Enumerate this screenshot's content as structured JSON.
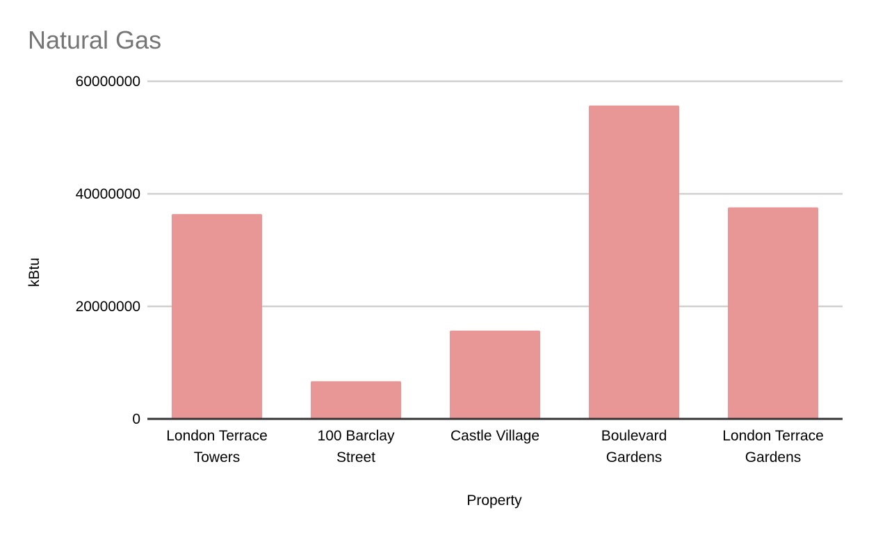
{
  "chart_data": {
    "type": "bar",
    "title": "Natural Gas",
    "xlabel": "Property",
    "ylabel": "kBtu",
    "categories": [
      [
        "London Terrace",
        "Towers"
      ],
      [
        "100 Barclay",
        "Street"
      ],
      [
        "Castle Village"
      ],
      [
        "Boulevard",
        "Gardens"
      ],
      [
        "London Terrace",
        "Gardens"
      ]
    ],
    "values": [
      36400000,
      6700000,
      15700000,
      55700000,
      37600000
    ],
    "ylim": [
      0,
      60000000
    ],
    "yticks": [
      0,
      20000000,
      40000000,
      60000000
    ],
    "ytick_labels": [
      "0",
      "20000000",
      "40000000",
      "60000000"
    ],
    "grid": true,
    "legend": "none",
    "bar_color": "#e99796"
  }
}
